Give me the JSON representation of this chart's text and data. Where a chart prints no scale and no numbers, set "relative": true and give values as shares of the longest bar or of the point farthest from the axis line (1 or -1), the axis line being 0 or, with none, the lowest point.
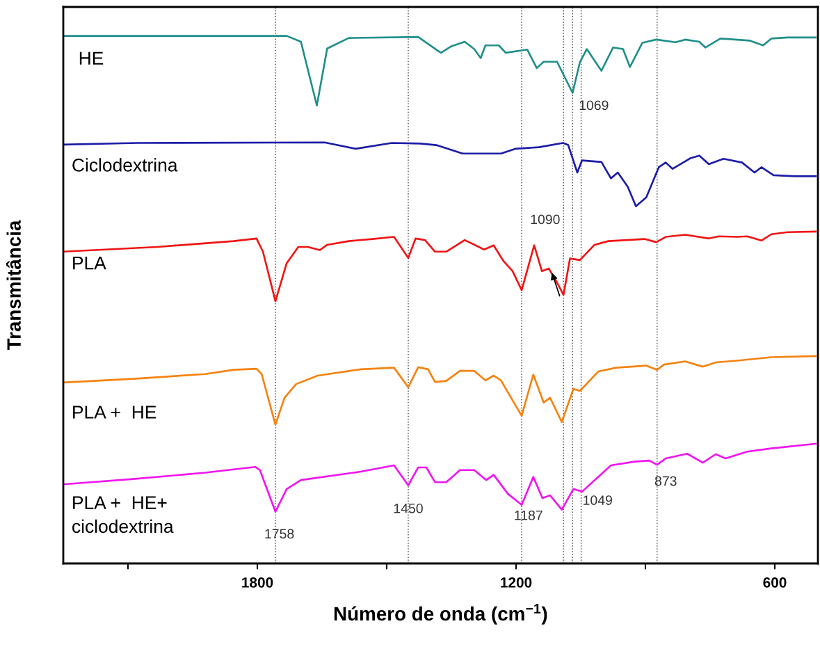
{
  "chart_data": {
    "type": "line",
    "xlabel": "Número de onda (cm$^{−1}$)",
    "ylabel": "Transmitância",
    "relative": true,
    "legend": false,
    "grid": false,
    "xlim": [
      2250,
      500
    ],
    "xticks": [
      {
        "value": 2100,
        "label": null
      },
      1800,
      {
        "value": 1500,
        "label": null
      },
      1200,
      {
        "value": 900,
        "label": null
      },
      600
    ],
    "series": [
      {
        "name": "HE",
        "color": "#1f8f8a",
        "x": [
          2250,
          1732,
          1699,
          1662,
          1638,
          1588,
          1427,
          1385,
          1374,
          1351,
          1319,
          1297,
          1282,
          1271,
          1240,
          1224,
          1174,
          1152,
          1136,
          1105,
          1069,
          1052,
          1036,
          1002,
          975,
          952,
          936,
          907,
          875,
          830,
          808,
          775,
          761,
          726,
          658,
          627,
          608,
          570,
          505
        ],
        "values": [
          1.0,
          1.0,
          0.989,
          0.868,
          0.976,
          0.996,
          0.998,
          0.974,
          0.968,
          0.98,
          0.989,
          0.975,
          0.958,
          0.982,
          0.982,
          0.968,
          0.974,
          0.939,
          0.951,
          0.951,
          0.892,
          0.95,
          0.975,
          0.934,
          0.978,
          0.975,
          0.941,
          0.987,
          0.993,
          0.988,
          0.993,
          0.989,
          0.978,
          0.995,
          0.991,
          0.982,
          0.995,
          0.997,
          0.997
        ]
      },
      {
        "name": "Ciclodextrina",
        "color": "#1c1ca8",
        "x": [
          2250,
          2077,
          1644,
          1572,
          1488,
          1422,
          1385,
          1324,
          1274,
          1235,
          1202,
          1147,
          1091,
          1079,
          1058,
          1047,
          1002,
          980,
          964,
          941,
          922,
          898,
          869,
          853,
          837,
          796,
          775,
          753,
          719,
          676,
          647,
          631,
          603,
          553,
          505
        ],
        "values": [
          0.794,
          0.797,
          0.798,
          0.786,
          0.797,
          0.796,
          0.793,
          0.777,
          0.777,
          0.777,
          0.786,
          0.789,
          0.797,
          0.793,
          0.741,
          0.764,
          0.761,
          0.73,
          0.741,
          0.714,
          0.677,
          0.694,
          0.751,
          0.76,
          0.748,
          0.768,
          0.773,
          0.757,
          0.767,
          0.76,
          0.741,
          0.751,
          0.736,
          0.734,
          0.734
        ]
      },
      {
        "name": "PLA",
        "color": "#f01414",
        "x": [
          2250,
          2032,
          1855,
          1802,
          1787,
          1758,
          1732,
          1705,
          1683,
          1655,
          1638,
          1588,
          1533,
          1483,
          1450,
          1433,
          1411,
          1388,
          1362,
          1319,
          1274,
          1252,
          1229,
          1208,
          1187,
          1158,
          1140,
          1124,
          1108,
          1090,
          1075,
          1052,
          1018,
          986,
          902,
          875,
          853,
          808,
          753,
          730,
          687,
          664,
          631,
          608,
          570,
          505
        ],
        "values": [
          0.591,
          0.6,
          0.611,
          0.616,
          0.591,
          0.497,
          0.569,
          0.6,
          0.6,
          0.594,
          0.604,
          0.611,
          0.615,
          0.619,
          0.579,
          0.616,
          0.613,
          0.591,
          0.591,
          0.613,
          0.595,
          0.603,
          0.573,
          0.554,
          0.518,
          0.603,
          0.554,
          0.559,
          0.537,
          0.509,
          0.578,
          0.575,
          0.604,
          0.611,
          0.615,
          0.609,
          0.619,
          0.623,
          0.616,
          0.62,
          0.619,
          0.62,
          0.612,
          0.624,
          0.628,
          0.629
        ]
      },
      {
        "name": "PLA +  HE",
        "color": "#f5820f",
        "x": [
          2250,
          2088,
          1921,
          1855,
          1802,
          1790,
          1758,
          1737,
          1710,
          1660,
          1560,
          1483,
          1450,
          1427,
          1404,
          1388,
          1362,
          1330,
          1297,
          1271,
          1252,
          1235,
          1208,
          1187,
          1160,
          1136,
          1121,
          1094,
          1067,
          1052,
          1009,
          968,
          898,
          873,
          857,
          808,
          767,
          737,
          680,
          608,
          505
        ],
        "values": [
          0.343,
          0.35,
          0.359,
          0.367,
          0.369,
          0.359,
          0.263,
          0.314,
          0.34,
          0.356,
          0.368,
          0.371,
          0.334,
          0.372,
          0.368,
          0.344,
          0.346,
          0.365,
          0.365,
          0.347,
          0.356,
          0.347,
          0.309,
          0.28,
          0.358,
          0.305,
          0.314,
          0.268,
          0.331,
          0.327,
          0.364,
          0.371,
          0.375,
          0.367,
          0.377,
          0.383,
          0.373,
          0.381,
          0.385,
          0.391,
          0.393
        ]
      },
      {
        "name": "PLA +  HE+\nciclodextrina",
        "color": "#f015f0",
        "x": [
          2250,
          2088,
          1921,
          1805,
          1794,
          1758,
          1732,
          1699,
          1560,
          1483,
          1450,
          1427,
          1408,
          1388,
          1362,
          1330,
          1297,
          1269,
          1252,
          1219,
          1187,
          1160,
          1139,
          1121,
          1094,
          1067,
          1047,
          980,
          925,
          891,
          873,
          853,
          803,
          767,
          737,
          714,
          664,
          608,
          505
        ],
        "values": [
          0.15,
          0.16,
          0.172,
          0.183,
          0.177,
          0.098,
          0.141,
          0.158,
          0.174,
          0.186,
          0.148,
          0.182,
          0.182,
          0.154,
          0.154,
          0.177,
          0.177,
          0.158,
          0.168,
          0.132,
          0.111,
          0.164,
          0.124,
          0.129,
          0.102,
          0.141,
          0.136,
          0.186,
          0.193,
          0.195,
          0.187,
          0.199,
          0.208,
          0.191,
          0.207,
          0.199,
          0.212,
          0.218,
          0.227
        ]
      }
    ],
    "ref_lines": [
      {
        "axis": "x",
        "value": 1758,
        "line_style": "dotted",
        "color": "#555555"
      },
      {
        "axis": "x",
        "value": 1450,
        "line_style": "dotted",
        "color": "#555555"
      },
      {
        "axis": "x",
        "value": 1187,
        "line_style": "dotted",
        "color": "#555555"
      },
      {
        "axis": "x",
        "value": 1090,
        "line_style": "dotted",
        "color": "#555555"
      },
      {
        "axis": "x",
        "value": 1069,
        "line_style": "dotted",
        "color": "#555555"
      },
      {
        "axis": "x",
        "value": 1049,
        "line_style": "dotted",
        "color": "#555555"
      },
      {
        "axis": "x",
        "value": 873,
        "line_style": "dotted",
        "color": "#555555"
      }
    ],
    "annotations": [
      {
        "text": "1069",
        "x": 1069,
        "y": 0.892
      },
      {
        "text": "1090",
        "x": 1090,
        "y": 0.65
      },
      {
        "text": "1758",
        "x": 1758,
        "y": 0.098
      },
      {
        "text": "1450",
        "x": 1450,
        "y": 0.148
      },
      {
        "text": "1187",
        "x": 1187,
        "y": 0.111
      },
      {
        "text": "1049",
        "x": 1049,
        "y": 0.136
      },
      {
        "text": "873",
        "x": 873,
        "y": 0.187
      }
    ]
  }
}
